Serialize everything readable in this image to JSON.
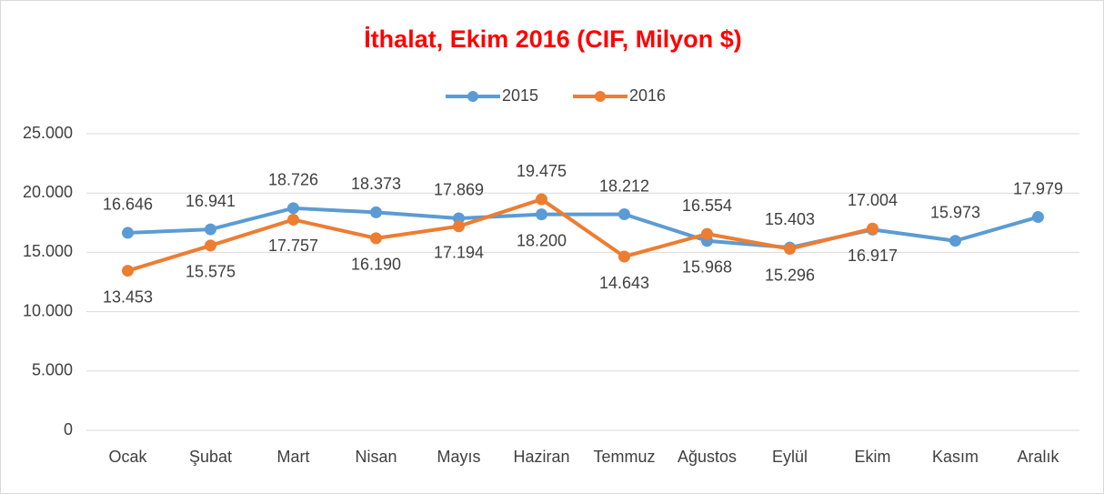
{
  "chart_data": {
    "type": "line",
    "title": "İthalat, Ekim 2016 (CIF, Milyon $)",
    "categories": [
      "Ocak",
      "Şubat",
      "Mart",
      "Nisan",
      "Mayıs",
      "Haziran",
      "Temmuz",
      "Ağustos",
      "Eylül",
      "Ekim",
      "Kasım",
      "Aralık"
    ],
    "series": [
      {
        "name": "2015",
        "color": "#5b9bd5",
        "values": [
          16646,
          16941,
          18726,
          18373,
          17869,
          18200,
          18212,
          15968,
          15403,
          16917,
          15973,
          17979
        ],
        "value_labels": [
          "16.646",
          "16.941",
          "18.726",
          "18.373",
          "17.869",
          "18.200",
          "18.212",
          "15.968",
          "15.403",
          "16.917",
          "15.973",
          "17.979"
        ]
      },
      {
        "name": "2016",
        "color": "#ed7d31",
        "values": [
          13453,
          15575,
          17757,
          16190,
          17194,
          19475,
          14643,
          16554,
          15296,
          17004,
          null,
          null
        ],
        "value_labels": [
          "13.453",
          "15.575",
          "17.757",
          "16.190",
          "17.194",
          "19.475",
          "14.643",
          "16.554",
          "15.296",
          "17.004",
          null,
          null
        ]
      }
    ],
    "ylim": [
      0,
      25000
    ],
    "yticks": [
      {
        "value": 0,
        "label": "0"
      },
      {
        "value": 5000,
        "label": "5.000"
      },
      {
        "value": 10000,
        "label": "10.000"
      },
      {
        "value": 15000,
        "label": "15.000"
      },
      {
        "value": 20000,
        "label": "20.000"
      },
      {
        "value": 25000,
        "label": "25.000"
      }
    ],
    "grid": true,
    "legend": "top"
  }
}
